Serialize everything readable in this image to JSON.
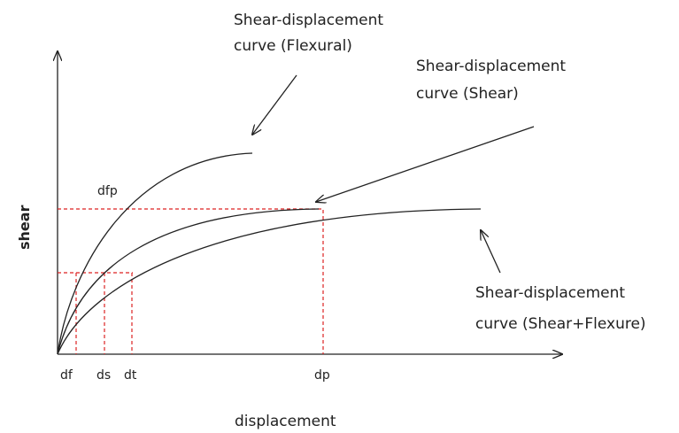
{
  "axes": {
    "y_label": "shear",
    "x_label": "displacement"
  },
  "points": {
    "df": "df",
    "ds": "ds",
    "dt": "dt",
    "dp": "dp",
    "dfp": "dfp"
  },
  "curves": [
    {
      "lines": [
        "Shear-displacement",
        "curve (Flexural)"
      ]
    },
    {
      "lines": [
        "Shear-displacement",
        "curve (Shear)"
      ]
    },
    {
      "lines": [
        "Shear-displacement",
        "curve (Shear+Flexure)"
      ]
    }
  ]
}
